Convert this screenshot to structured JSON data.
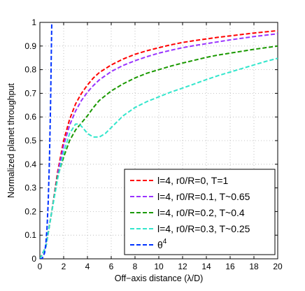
{
  "chart_data": {
    "type": "line",
    "title": "",
    "xlabel": "Off−axis distance (λ/D)",
    "ylabel": "Normalized planet throughput",
    "xlim": [
      0,
      20
    ],
    "ylim": [
      0,
      1
    ],
    "xticks": [
      "0",
      "2",
      "4",
      "6",
      "8",
      "10",
      "12",
      "14",
      "16",
      "18",
      "20"
    ],
    "yticks": [
      "0",
      "0.1",
      "0.2",
      "0.3",
      "0.4",
      "0.5",
      "0.6",
      "0.7",
      "0.8",
      "0.9",
      "1"
    ],
    "grid": true,
    "legend_position": "lower-right",
    "series": [
      {
        "name": "l=4, r0/R=0, T=1",
        "color": "#ff0000",
        "style": "dashed",
        "x": [
          0,
          0.5,
          1,
          1.5,
          2,
          2.5,
          3,
          3.5,
          4,
          4.5,
          5,
          6,
          7,
          8,
          9,
          10,
          11,
          12,
          13,
          14,
          15,
          16,
          17,
          18,
          19,
          20
        ],
        "y": [
          0,
          0.05,
          0.2,
          0.37,
          0.5,
          0.59,
          0.655,
          0.7,
          0.735,
          0.765,
          0.788,
          0.82,
          0.845,
          0.865,
          0.88,
          0.893,
          0.905,
          0.915,
          0.923,
          0.93,
          0.937,
          0.943,
          0.949,
          0.955,
          0.96,
          0.965
        ]
      },
      {
        "name": "l=4, r0/R=0.1, T~0.65",
        "color": "#9933ff",
        "style": "dashed",
        "x": [
          0,
          0.5,
          1,
          1.5,
          2,
          2.5,
          3,
          3.5,
          4,
          4.5,
          5,
          6,
          7,
          8,
          9,
          10,
          11,
          12,
          13,
          14,
          15,
          16,
          17,
          18,
          19,
          20
        ],
        "y": [
          0,
          0.05,
          0.2,
          0.36,
          0.48,
          0.565,
          0.625,
          0.67,
          0.705,
          0.733,
          0.757,
          0.792,
          0.818,
          0.838,
          0.855,
          0.87,
          0.882,
          0.893,
          0.902,
          0.91,
          0.918,
          0.926,
          0.933,
          0.94,
          0.946,
          0.952
        ]
      },
      {
        "name": "l=4, r0/R=0.2, T~0.4",
        "color": "#1a9900",
        "style": "dashed",
        "x": [
          0,
          0.5,
          1,
          1.5,
          2,
          2.5,
          3,
          3.5,
          4,
          4.5,
          5,
          6,
          7,
          8,
          9,
          10,
          11,
          12,
          13,
          14,
          15,
          16,
          17,
          18,
          19,
          20
        ],
        "y": [
          0,
          0.05,
          0.2,
          0.35,
          0.43,
          0.5,
          0.545,
          0.575,
          0.605,
          0.64,
          0.67,
          0.71,
          0.74,
          0.765,
          0.785,
          0.8,
          0.815,
          0.828,
          0.84,
          0.852,
          0.862,
          0.87,
          0.878,
          0.886,
          0.893,
          0.9
        ]
      },
      {
        "name": "l=4, r0/R=0.3, T~0.25",
        "color": "#33e6cc",
        "style": "dashed",
        "x": [
          0,
          0.5,
          1,
          1.5,
          2,
          2.5,
          3,
          3.3,
          3.6,
          4,
          4.5,
          5,
          5.5,
          6,
          7,
          8,
          9,
          10,
          11,
          12,
          13,
          14,
          15,
          16,
          17,
          18,
          19,
          20
        ],
        "y": [
          0,
          0.05,
          0.2,
          0.34,
          0.45,
          0.53,
          0.57,
          0.57,
          0.555,
          0.53,
          0.515,
          0.515,
          0.53,
          0.555,
          0.605,
          0.64,
          0.665,
          0.685,
          0.705,
          0.722,
          0.74,
          0.758,
          0.775,
          0.79,
          0.805,
          0.82,
          0.835,
          0.848
        ]
      },
      {
        "name": "θ",
        "name_superscript": "4",
        "color": "#0033ff",
        "style": "dashed",
        "x": [
          0,
          0.2,
          0.4,
          0.5,
          0.6,
          0.7,
          0.8,
          0.9,
          1
        ],
        "y": [
          0,
          0.0016,
          0.0256,
          0.0625,
          0.1296,
          0.2401,
          0.4096,
          0.6561,
          1
        ]
      }
    ]
  }
}
